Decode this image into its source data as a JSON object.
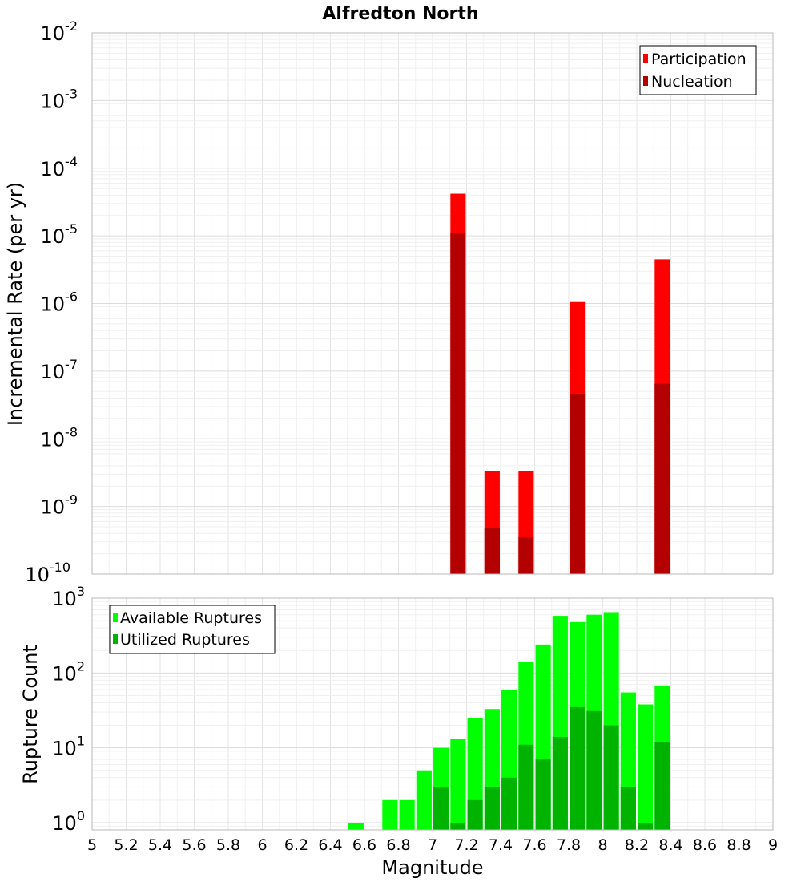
{
  "chart_data": [
    {
      "type": "bar",
      "title": "Alfredton North",
      "xlabel": "",
      "ylabel": "Incremental Rate (per yr)",
      "yscale": "log",
      "xlim": [
        5,
        9
      ],
      "ylim": [
        1e-10,
        0.01
      ],
      "ytick_exponents": [
        -10,
        -9,
        -8,
        -7,
        -6,
        -5,
        -4,
        -3,
        -2
      ],
      "bar_width": 0.09,
      "grid": true,
      "legend_position": "top-right",
      "colors": {
        "participation": "#ff0000",
        "nucleation": "#b30000"
      },
      "series": [
        {
          "name": "Participation",
          "x": [
            7.15,
            7.35,
            7.55,
            7.85,
            8.35
          ],
          "values": [
            4.2e-05,
            3.3e-09,
            3.3e-09,
            1.05e-06,
            4.5e-06
          ]
        },
        {
          "name": "Nucleation",
          "x": [
            7.15,
            7.35,
            7.55,
            7.85,
            8.35
          ],
          "values": [
            1.1e-05,
            4.8e-10,
            3.5e-10,
            4.6e-08,
            6.5e-08
          ]
        }
      ]
    },
    {
      "type": "bar",
      "title": "",
      "xlabel": "Magnitude",
      "ylabel": "Rupture Count",
      "yscale": "log",
      "xlim": [
        5,
        9
      ],
      "ylim": [
        0.8,
        1000
      ],
      "ytick_exponents": [
        0,
        1,
        2,
        3
      ],
      "xticks": [
        "5",
        "5.2",
        "5.4",
        "5.6",
        "5.8",
        "6",
        "6.2",
        "6.4",
        "6.6",
        "6.8",
        "7",
        "7.2",
        "7.4",
        "7.6",
        "7.8",
        "8",
        "8.2",
        "8.4",
        "8.6",
        "8.8",
        "9"
      ],
      "bar_width": 0.09,
      "grid": true,
      "legend_position": "top-left",
      "colors": {
        "available": "#00ff00",
        "utilized": "#00b300"
      },
      "series": [
        {
          "name": "Available Ruptures",
          "x": [
            6.55,
            6.75,
            6.85,
            6.95,
            7.05,
            7.15,
            7.25,
            7.35,
            7.45,
            7.55,
            7.65,
            7.75,
            7.85,
            7.95,
            8.05,
            8.15,
            8.25,
            8.35
          ],
          "values": [
            1,
            2,
            2,
            5,
            10,
            13,
            25,
            33,
            60,
            140,
            240,
            580,
            480,
            600,
            650,
            55,
            38,
            68
          ]
        },
        {
          "name": "Utilized Ruptures",
          "x": [
            7.05,
            7.15,
            7.25,
            7.35,
            7.45,
            7.55,
            7.65,
            7.75,
            7.85,
            7.95,
            8.05,
            8.15,
            8.25,
            8.35
          ],
          "values": [
            3,
            1,
            2,
            3,
            4,
            11,
            7,
            14,
            35,
            31,
            20,
            3,
            1,
            12
          ]
        }
      ]
    }
  ]
}
